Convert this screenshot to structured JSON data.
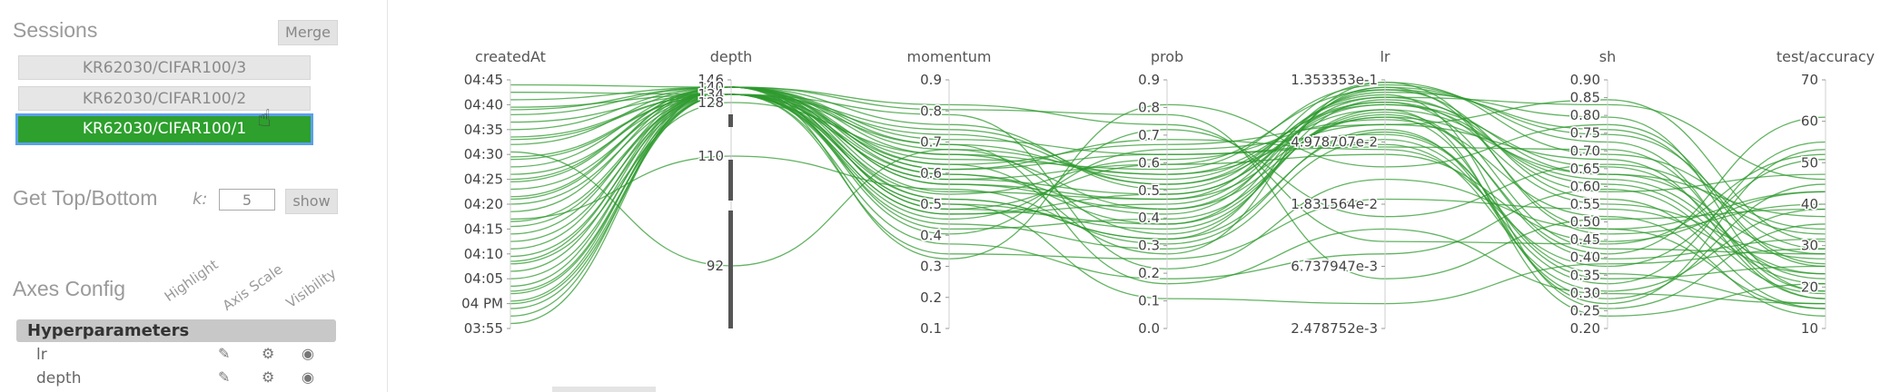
{
  "sidebar": {
    "sessions_title": "Sessions",
    "merge_label": "Merge",
    "sessions": [
      "KR62030/CIFAR100/3",
      "KR62030/CIFAR100/2",
      "KR62030/CIFAR100/1"
    ],
    "active_session_index": 2,
    "top_bottom": {
      "title": "Get Top/Bottom",
      "k_label": "k:",
      "k_value": "5",
      "show_label": "show"
    },
    "axes_config": {
      "title": "Axes Config",
      "columns": [
        "Highlight",
        "Axis Scale",
        "Visibility"
      ],
      "group": "Hyperparameters",
      "params": [
        "lr",
        "depth"
      ],
      "icons": [
        "pen-icon",
        "gear-icon",
        "eye-icon"
      ]
    }
  },
  "chart_data": {
    "type": "parallel-coordinates",
    "line_color": "#2e9a2e",
    "axes": [
      {
        "name": "createdAt",
        "ticks": [
          "04:45",
          "04:40",
          "04:35",
          "04:30",
          "04:25",
          "04:20",
          "04:15",
          "04:10",
          "04:05",
          "04 PM",
          "03:55"
        ]
      },
      {
        "name": "depth",
        "ticks": [
          "146",
          "140",
          "134",
          "128",
          "110",
          "92"
        ],
        "values": [
          146,
          140,
          134,
          128,
          110,
          92
        ]
      },
      {
        "name": "momentum",
        "ticks": [
          "0.9",
          "0.8",
          "0.7",
          "0.6",
          "0.5",
          "0.4",
          "0.3",
          "0.2",
          "0.1"
        ],
        "range": [
          0.1,
          0.9
        ]
      },
      {
        "name": "prob",
        "ticks": [
          "0.9",
          "0.8",
          "0.7",
          "0.6",
          "0.5",
          "0.4",
          "0.3",
          "0.2",
          "0.1",
          "0.0"
        ],
        "range": [
          0.0,
          0.9
        ]
      },
      {
        "name": "lr",
        "ticks": [
          "1.353353e-1",
          "4.978707e-2",
          "1.831564e-2",
          "6.737947e-3",
          "2.478752e-3"
        ],
        "scale": "log"
      },
      {
        "name": "sh",
        "ticks": [
          "0.90",
          "0.85",
          "0.80",
          "0.75",
          "0.70",
          "0.65",
          "0.60",
          "0.55",
          "0.50",
          "0.45",
          "0.40",
          "0.35",
          "0.30",
          "0.25",
          "0.20"
        ],
        "range": [
          0.2,
          0.9
        ]
      },
      {
        "name": "test/accuracy",
        "ticks": [
          "70",
          "60",
          "50",
          "40",
          "30",
          "20",
          "10"
        ],
        "range": [
          5,
          78
        ]
      }
    ],
    "runs": [
      [
        0.02,
        1,
        0.72,
        0.38,
        0.92,
        0.62,
        0.3
      ],
      [
        0.05,
        1,
        0.55,
        0.52,
        0.85,
        0.1,
        0.72
      ],
      [
        0.08,
        2,
        0.62,
        0.42,
        0.96,
        0.8,
        0.25
      ],
      [
        0.11,
        1,
        0.48,
        0.66,
        0.7,
        0.35,
        0.55
      ],
      [
        0.14,
        2,
        0.8,
        0.58,
        0.88,
        0.05,
        0.18
      ],
      [
        0.17,
        1,
        0.66,
        0.3,
        0.99,
        0.7,
        0.4
      ],
      [
        0.2,
        2,
        0.44,
        0.72,
        0.78,
        0.22,
        0.1
      ],
      [
        0.23,
        1,
        0.58,
        0.48,
        0.93,
        0.55,
        0.62
      ],
      [
        0.26,
        3,
        0.7,
        0.62,
        0.82,
        0.92,
        0.35
      ],
      [
        0.29,
        2,
        0.52,
        0.36,
        0.97,
        0.4,
        0.08
      ],
      [
        0.32,
        1,
        0.76,
        0.7,
        0.74,
        0.15,
        0.48
      ],
      [
        0.35,
        2,
        0.6,
        0.54,
        0.9,
        0.65,
        0.2
      ],
      [
        0.38,
        1,
        0.4,
        0.44,
        0.86,
        0.3,
        0.85
      ],
      [
        0.41,
        2,
        0.68,
        0.64,
        0.98,
        0.75,
        0.12
      ],
      [
        0.44,
        4,
        0.56,
        0.34,
        0.8,
        0.12,
        0.58
      ],
      [
        0.47,
        1,
        0.74,
        0.6,
        0.91,
        0.5,
        0.28
      ],
      [
        0.5,
        2,
        0.46,
        0.5,
        0.95,
        0.85,
        0.15
      ],
      [
        0.53,
        1,
        0.64,
        0.76,
        0.72,
        0.25,
        0.68
      ],
      [
        0.56,
        2,
        0.5,
        0.4,
        0.88,
        0.6,
        0.22
      ],
      [
        0.59,
        1,
        0.82,
        0.56,
        0.94,
        0.08,
        0.42
      ],
      [
        0.62,
        2,
        0.54,
        0.68,
        0.84,
        0.45,
        0.05
      ],
      [
        0.65,
        1,
        0.62,
        0.46,
        0.97,
        0.78,
        0.32
      ],
      [
        0.68,
        2,
        0.42,
        0.32,
        0.76,
        0.18,
        0.75
      ],
      [
        0.71,
        5,
        0.72,
        0.62,
        0.9,
        0.58,
        0.18
      ],
      [
        0.74,
        1,
        0.58,
        0.52,
        0.99,
        0.38,
        0.5
      ],
      [
        0.77,
        2,
        0.66,
        0.74,
        0.82,
        0.68,
        0.12
      ],
      [
        0.8,
        1,
        0.48,
        0.42,
        0.87,
        0.28,
        0.36
      ],
      [
        0.83,
        2,
        0.78,
        0.58,
        0.93,
        0.9,
        0.6
      ],
      [
        0.86,
        1,
        0.52,
        0.36,
        0.79,
        0.2,
        0.25
      ],
      [
        0.89,
        2,
        0.6,
        0.66,
        0.96,
        0.52,
        0.08
      ],
      [
        0.92,
        1,
        0.7,
        0.48,
        0.85,
        0.62,
        0.45
      ],
      [
        0.95,
        2,
        0.46,
        0.54,
        0.91,
        0.32,
        0.3
      ],
      [
        0.98,
        1,
        0.64,
        0.7,
        0.73,
        0.72,
        0.15
      ],
      [
        0.1,
        2,
        0.86,
        0.24,
        0.6,
        0.4,
        0.55
      ],
      [
        0.27,
        1,
        0.38,
        0.8,
        0.45,
        0.66,
        0.38
      ],
      [
        0.43,
        2,
        0.3,
        0.28,
        0.52,
        0.48,
        0.22
      ],
      [
        0.6,
        1,
        0.9,
        0.82,
        0.35,
        0.34,
        0.7
      ],
      [
        0.76,
        2,
        0.34,
        0.2,
        0.3,
        0.56,
        0.14
      ],
      [
        0.88,
        1,
        0.88,
        0.86,
        0.2,
        0.44,
        0.48
      ],
      [
        0.15,
        2,
        0.5,
        0.12,
        0.1,
        0.26,
        0.32
      ],
      [
        0.52,
        1,
        0.28,
        0.9,
        0.65,
        0.82,
        0.26
      ],
      [
        0.69,
        2,
        0.74,
        0.18,
        0.4,
        0.14,
        0.1
      ]
    ]
  }
}
